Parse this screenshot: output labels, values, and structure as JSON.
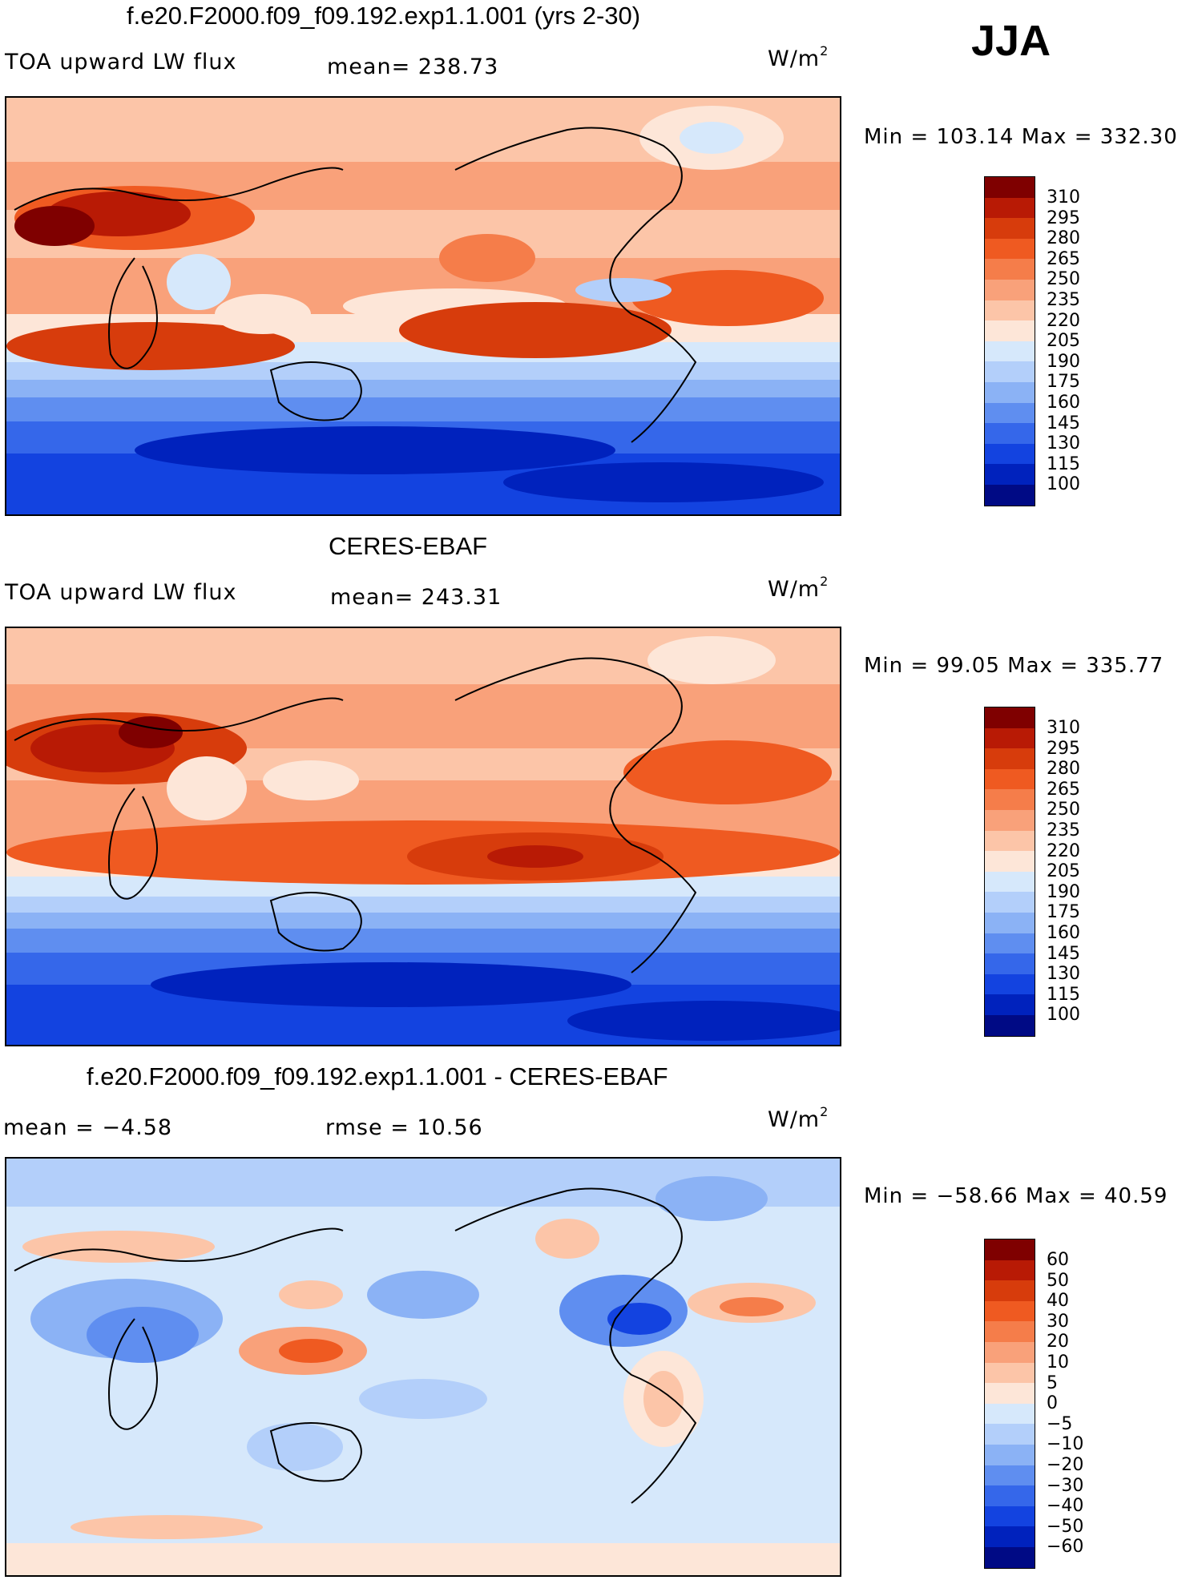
{
  "season": "JJA",
  "units": "W/m",
  "units_exp": "2",
  "panels": [
    {
      "title": "f.e20.F2000.f09_f09.192.exp1.1.001 (yrs 2-30)",
      "left_label": "TOA upward LW flux",
      "stat": "mean=  238.73",
      "minmax": "Min  =  103.14  Max  =  332.30",
      "colors": [
        "#7f0000",
        "#b81a05",
        "#d73c0c",
        "#ef5a21",
        "#f57d4a",
        "#f9a17a",
        "#fcc5a8",
        "#fde6d8",
        "#ffffff",
        "#d6e8fb",
        "#b3cffa",
        "#8bb2f5",
        "#5f8ef0",
        "#3567ea",
        "#1343e0",
        "#0022bd",
        "#000a85"
      ],
      "ticks": [
        "310",
        "295",
        "280",
        "265",
        "250",
        "235",
        "220",
        "205",
        "190",
        "175",
        "160",
        "145",
        "130",
        "115",
        "100"
      ]
    },
    {
      "title": "CERES-EBAF",
      "left_label": "TOA upward LW flux",
      "stat": "mean=  243.31",
      "minmax": "Min  =    99.05  Max  =  335.77",
      "colors": [
        "#7f0000",
        "#b81a05",
        "#d73c0c",
        "#ef5a21",
        "#f57d4a",
        "#f9a17a",
        "#fcc5a8",
        "#fde6d8",
        "#ffffff",
        "#d6e8fb",
        "#b3cffa",
        "#8bb2f5",
        "#5f8ef0",
        "#3567ea",
        "#1343e0",
        "#0022bd",
        "#000a85"
      ],
      "ticks": [
        "310",
        "295",
        "280",
        "265",
        "250",
        "235",
        "220",
        "205",
        "190",
        "175",
        "160",
        "145",
        "130",
        "115",
        "100"
      ]
    },
    {
      "title": "f.e20.F2000.f09_f09.192.exp1.1.001 - CERES-EBAF",
      "left_label": "mean  =    −4.58",
      "stat": "rmse  =    10.56",
      "minmax": "Min  = −58.66  Max  =    40.59",
      "colors": [
        "#7f0000",
        "#b81a05",
        "#d73c0c",
        "#ef5a21",
        "#f57d4a",
        "#f9a17a",
        "#fcc5a8",
        "#fde6d8",
        "#ffffff",
        "#d6e8fb",
        "#b3cffa",
        "#8bb2f5",
        "#5f8ef0",
        "#3567ea",
        "#1343e0",
        "#0022bd",
        "#000a85"
      ],
      "ticks": [
        "60",
        "50",
        "40",
        "30",
        "20",
        "10",
        "5",
        "0",
        "−5",
        "−10",
        "−20",
        "−30",
        "−40",
        "−50",
        "−60"
      ]
    }
  ]
}
